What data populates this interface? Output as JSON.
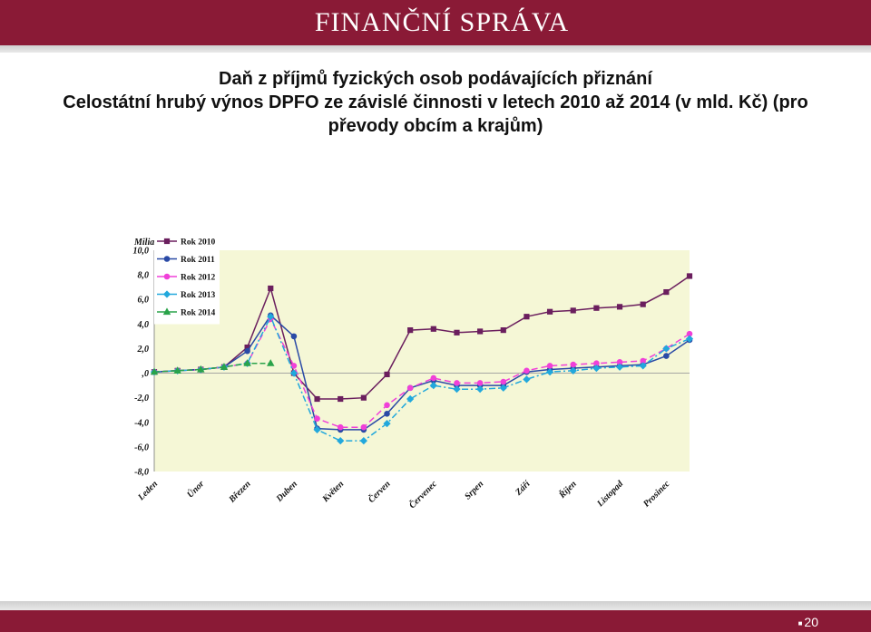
{
  "header": {
    "brand": "FINANČNÍ SPRÁVA"
  },
  "titles": {
    "line1": "Daň z příjmů fyzických osob podávajících přiznání",
    "line2": "Celostátní hrubý výnos DPFO ze závislé činnosti v letech 2010 až 2014 (v mld. Kč) (pro",
    "line3": "převody obcím a krajům)"
  },
  "colors": {
    "header_bg": "#8a1a36",
    "plot_bg": "#f5f7d6",
    "series": [
      "#6b1f5e",
      "#2a4aa6",
      "#f040d8",
      "#22a8dc",
      "#2aa34a"
    ]
  },
  "chart_data": {
    "type": "line",
    "ylabel": "Miliar",
    "ylim": [
      -8,
      10
    ],
    "yticks": [
      "10,0",
      "8,0",
      "6,0",
      "4,0",
      "2,0",
      ",0",
      "-2,0",
      "-4,0",
      "-6,0",
      "-8,0"
    ],
    "categories": [
      "Leden",
      "Únor",
      "Březen",
      "Duben",
      "Květen",
      "Červen",
      "Červenec",
      "Srpen",
      "Září",
      "Říjen",
      "Listopad",
      "Prosinec"
    ],
    "x": [
      "Leden",
      "",
      "Únor",
      "",
      "Březen",
      "",
      "Duben",
      "",
      "Květen",
      "",
      "Červen",
      "",
      "Červenec",
      "",
      "Srpen",
      "",
      "Září",
      "",
      "Říjen",
      "",
      "Listopad",
      "",
      "Prosinec",
      ""
    ],
    "legend_position": "top-left",
    "series": [
      {
        "name": "Rok 2010",
        "marker": "square",
        "values": [
          0.1,
          0.2,
          0.3,
          0.5,
          2.1,
          6.9,
          0.0,
          -2.1,
          -2.1,
          -2.0,
          -0.1,
          3.5,
          3.6,
          3.3,
          3.4,
          3.5,
          4.6,
          5.0,
          5.1,
          5.3,
          5.4,
          5.6,
          6.6,
          7.9
        ]
      },
      {
        "name": "Rok 2011",
        "marker": "circle",
        "values": [
          0.1,
          0.2,
          0.3,
          0.5,
          1.8,
          4.7,
          3.0,
          -4.5,
          -4.6,
          -4.6,
          -3.3,
          -1.2,
          -0.6,
          -1.0,
          -1.0,
          -1.0,
          0.1,
          0.3,
          0.4,
          0.5,
          0.6,
          0.7,
          1.4,
          2.7
        ]
      },
      {
        "name": "Rok 2012",
        "marker": "circle",
        "values": [
          0.1,
          0.2,
          0.3,
          0.5,
          0.8,
          4.4,
          0.6,
          -3.7,
          -4.4,
          -4.4,
          -2.6,
          -1.2,
          -0.4,
          -0.8,
          -0.8,
          -0.7,
          0.2,
          0.6,
          0.7,
          0.8,
          0.9,
          1.0,
          2.0,
          3.2
        ]
      },
      {
        "name": "Rok 2013",
        "marker": "diamond",
        "values": [
          0.1,
          0.2,
          0.3,
          0.5,
          0.8,
          4.6,
          0.0,
          -4.6,
          -5.5,
          -5.5,
          -4.1,
          -2.1,
          -1.0,
          -1.3,
          -1.3,
          -1.2,
          -0.5,
          0.1,
          0.2,
          0.4,
          0.5,
          0.6,
          2.0,
          2.8
        ]
      },
      {
        "name": "Rok 2014",
        "marker": "triangle",
        "values": [
          0.1,
          0.2,
          0.3,
          0.5,
          0.8,
          0.8,
          null,
          null,
          null,
          null,
          null,
          null,
          null,
          null,
          null,
          null,
          null,
          null,
          null,
          null,
          null,
          null,
          null,
          null
        ]
      }
    ]
  },
  "footer": {
    "page_number": "20"
  }
}
